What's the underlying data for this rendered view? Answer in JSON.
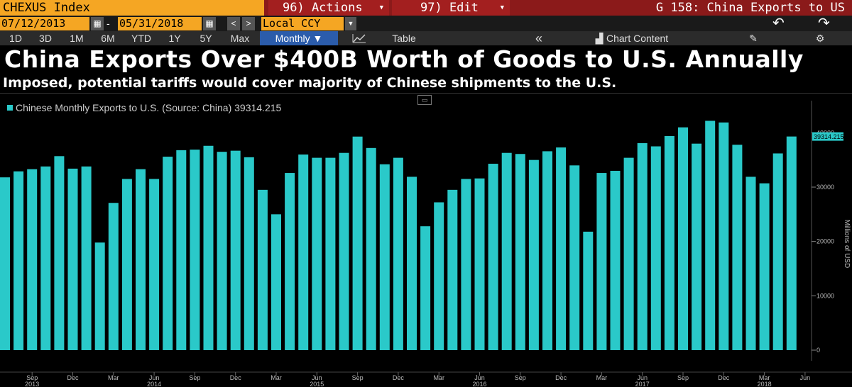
{
  "command_bar": {
    "ticker": "CHEXUS Index",
    "actions_label": "96) Actions",
    "edit_label": "97) Edit",
    "graph_title": "G 158: China Exports to US"
  },
  "date_bar": {
    "start_date": "07/12/2013",
    "end_date": "05/31/2018",
    "currency": "Local CCY",
    "dash": "-"
  },
  "toolbar": {
    "ranges": [
      "1D",
      "3D",
      "1M",
      "6M",
      "YTD",
      "1Y",
      "5Y",
      "Max"
    ],
    "period": "Monthly ▼",
    "table_label": "Table",
    "collapse_label": "«",
    "chart_content_label": "Chart Content"
  },
  "headline": "China Exports Over $400B Worth of Goods to U.S. Annually",
  "subheadline": "Imposed, potential tariffs would cover majority of Chinese shipments to the U.S.",
  "colors": {
    "bar": "#2ac9c9",
    "ticker_bg": "#f5a623",
    "command_bg": "#8b1a1a"
  },
  "chart_data": {
    "type": "bar",
    "series": [
      {
        "name": "Chinese Monthly Exports to U.S. (Source: China)",
        "last_value_label": "39314.215",
        "values": [
          31800,
          32900,
          33300,
          33800,
          35700,
          33400,
          33800,
          19800,
          27100,
          31500,
          33300,
          31500,
          35600,
          36800,
          36900,
          37600,
          36500,
          36700,
          35500,
          29500,
          25000,
          32600,
          36000,
          35400,
          35400,
          36300,
          39300,
          37200,
          34200,
          35400,
          31900,
          22800,
          27200,
          29500,
          31500,
          31600,
          34300,
          36300,
          36100,
          35000,
          36600,
          37300,
          34000,
          21800,
          32600,
          33000,
          35400,
          38100,
          37500,
          39400,
          41000,
          38000,
          42200,
          41900,
          37800,
          31900,
          30700,
          36200,
          39314.215
        ]
      }
    ],
    "legend_text": "Chinese Monthly Exports to U.S. (Source: China) 39314.215",
    "last_value_badge": "39314.215",
    "ylabel": "Millions of USD",
    "ylim": [
      0,
      45000
    ],
    "yticks": [
      0,
      10000,
      20000,
      30000,
      40000
    ],
    "ytick_labels": [
      "0",
      "10000",
      "20000",
      "30000",
      "40000"
    ],
    "month_ticks": [
      {
        "index": 2,
        "label": "Sep"
      },
      {
        "index": 5,
        "label": "Dec"
      },
      {
        "index": 8,
        "label": "Mar"
      },
      {
        "index": 11,
        "label": "Jun"
      },
      {
        "index": 14,
        "label": "Sep"
      },
      {
        "index": 17,
        "label": "Dec"
      },
      {
        "index": 20,
        "label": "Mar"
      },
      {
        "index": 23,
        "label": "Jun"
      },
      {
        "index": 26,
        "label": "Sep"
      },
      {
        "index": 29,
        "label": "Dec"
      },
      {
        "index": 32,
        "label": "Mar"
      },
      {
        "index": 35,
        "label": "Jun"
      },
      {
        "index": 38,
        "label": "Sep"
      },
      {
        "index": 41,
        "label": "Dec"
      },
      {
        "index": 44,
        "label": "Mar"
      },
      {
        "index": 47,
        "label": "Jun"
      },
      {
        "index": 50,
        "label": "Sep"
      },
      {
        "index": 53,
        "label": "Dec"
      },
      {
        "index": 56,
        "label": "Mar"
      },
      {
        "index": 59,
        "label": "Jun"
      }
    ],
    "year_ticks": [
      {
        "index": 2,
        "label": "2013"
      },
      {
        "index": 11,
        "label": "2014"
      },
      {
        "index": 23,
        "label": "2015"
      },
      {
        "index": 35,
        "label": "2016"
      },
      {
        "index": 47,
        "label": "2017"
      },
      {
        "index": 56,
        "label": "2018"
      }
    ]
  }
}
